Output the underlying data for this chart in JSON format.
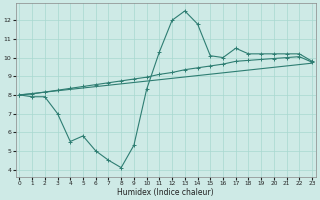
{
  "xlabel": "Humidex (Indice chaleur)",
  "x_ticks": [
    0,
    1,
    2,
    3,
    4,
    5,
    6,
    7,
    8,
    9,
    10,
    11,
    12,
    13,
    14,
    15,
    16,
    17,
    18,
    19,
    20,
    21,
    22,
    23
  ],
  "y_ticks": [
    4,
    5,
    6,
    7,
    8,
    9,
    10,
    11,
    12
  ],
  "xlim": [
    -0.3,
    23.3
  ],
  "ylim": [
    3.6,
    12.9
  ],
  "bg_color": "#ceeae6",
  "grid_color": "#a8d8d0",
  "line_color": "#2e7d72",
  "series_main": {
    "x": [
      0,
      1,
      2,
      3,
      4,
      5,
      6,
      7,
      8,
      9,
      10,
      11,
      12,
      13,
      14,
      15,
      16,
      17,
      18,
      19,
      20,
      21,
      22,
      23
    ],
    "y": [
      8.0,
      7.9,
      7.9,
      7.0,
      5.5,
      5.8,
      5.0,
      4.5,
      4.1,
      5.3,
      8.3,
      10.3,
      12.0,
      12.5,
      11.8,
      10.1,
      10.0,
      10.5,
      10.2,
      10.2,
      10.2,
      10.2,
      10.2,
      9.8
    ]
  },
  "series_upper": {
    "x": [
      0,
      1,
      2,
      3,
      4,
      5,
      6,
      7,
      8,
      9,
      10,
      11,
      12,
      13,
      14,
      15,
      16,
      17,
      18,
      19,
      20,
      21,
      22,
      23
    ],
    "y": [
      8.0,
      8.05,
      8.15,
      8.25,
      8.35,
      8.45,
      8.55,
      8.65,
      8.75,
      8.85,
      8.95,
      9.1,
      9.2,
      9.35,
      9.45,
      9.55,
      9.65,
      9.8,
      9.85,
      9.9,
      9.95,
      10.0,
      10.05,
      9.75
    ]
  },
  "series_lower": {
    "x": [
      0,
      23
    ],
    "y": [
      8.0,
      9.7
    ]
  }
}
